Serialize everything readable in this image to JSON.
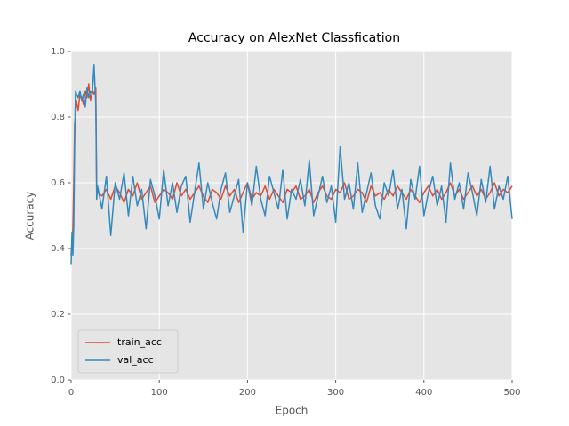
{
  "chart_data": {
    "type": "line",
    "title": "Accuracy on AlexNet Classfication",
    "xlabel": "Epoch",
    "ylabel": "Accuracy",
    "x": [
      0,
      1,
      2,
      3,
      4,
      5,
      6,
      8,
      10,
      12,
      14,
      16,
      18,
      20,
      22,
      24,
      26,
      28,
      29,
      30,
      35,
      40,
      45,
      50,
      55,
      60,
      65,
      70,
      75,
      80,
      85,
      90,
      95,
      100,
      105,
      110,
      115,
      120,
      125,
      130,
      135,
      140,
      145,
      150,
      155,
      160,
      165,
      170,
      175,
      180,
      185,
      190,
      195,
      200,
      205,
      210,
      215,
      220,
      225,
      230,
      235,
      240,
      245,
      250,
      255,
      260,
      265,
      270,
      275,
      280,
      285,
      290,
      295,
      300,
      305,
      310,
      315,
      320,
      325,
      330,
      335,
      340,
      345,
      350,
      355,
      360,
      365,
      370,
      375,
      380,
      385,
      390,
      395,
      400,
      405,
      410,
      415,
      420,
      425,
      430,
      435,
      440,
      445,
      450,
      455,
      460,
      465,
      470,
      475,
      480,
      485,
      490,
      495,
      500
    ],
    "series": [
      {
        "name": "train_acc",
        "color": "#E24A33",
        "values": [
          0.38,
          0.42,
          0.46,
          0.6,
          0.78,
          0.8,
          0.85,
          0.82,
          0.87,
          0.86,
          0.84,
          0.88,
          0.86,
          0.9,
          0.85,
          0.88,
          0.87,
          0.89,
          0.58,
          0.57,
          0.56,
          0.58,
          0.55,
          0.59,
          0.57,
          0.54,
          0.58,
          0.56,
          0.6,
          0.55,
          0.57,
          0.59,
          0.54,
          0.56,
          0.58,
          0.57,
          0.55,
          0.6,
          0.56,
          0.58,
          0.55,
          0.57,
          0.59,
          0.56,
          0.54,
          0.58,
          0.57,
          0.55,
          0.59,
          0.56,
          0.58,
          0.54,
          0.57,
          0.6,
          0.55,
          0.57,
          0.56,
          0.59,
          0.55,
          0.58,
          0.56,
          0.54,
          0.58,
          0.57,
          0.59,
          0.55,
          0.56,
          0.58,
          0.54,
          0.57,
          0.59,
          0.56,
          0.55,
          0.58,
          0.57,
          0.6,
          0.55,
          0.56,
          0.58,
          0.57,
          0.54,
          0.59,
          0.56,
          0.57,
          0.55,
          0.58,
          0.56,
          0.59,
          0.57,
          0.55,
          0.58,
          0.56,
          0.54,
          0.57,
          0.59,
          0.56,
          0.58,
          0.55,
          0.57,
          0.6,
          0.56,
          0.58,
          0.55,
          0.57,
          0.59,
          0.56,
          0.58,
          0.55,
          0.57,
          0.6,
          0.56,
          0.58,
          0.57,
          0.59
        ]
      },
      {
        "name": "val_acc",
        "color": "#348ABD",
        "values": [
          0.35,
          0.45,
          0.38,
          0.47,
          0.72,
          0.88,
          0.87,
          0.86,
          0.88,
          0.85,
          0.87,
          0.83,
          0.89,
          0.86,
          0.88,
          0.87,
          0.96,
          0.84,
          0.55,
          0.59,
          0.52,
          0.62,
          0.44,
          0.6,
          0.55,
          0.63,
          0.5,
          0.62,
          0.53,
          0.58,
          0.46,
          0.61,
          0.56,
          0.49,
          0.64,
          0.53,
          0.6,
          0.51,
          0.59,
          0.62,
          0.48,
          0.57,
          0.66,
          0.52,
          0.6,
          0.54,
          0.49,
          0.58,
          0.63,
          0.51,
          0.56,
          0.61,
          0.45,
          0.6,
          0.53,
          0.65,
          0.55,
          0.5,
          0.62,
          0.57,
          0.52,
          0.64,
          0.49,
          0.58,
          0.55,
          0.61,
          0.53,
          0.67,
          0.5,
          0.56,
          0.62,
          0.54,
          0.59,
          0.48,
          0.71,
          0.55,
          0.6,
          0.52,
          0.66,
          0.51,
          0.57,
          0.63,
          0.53,
          0.49,
          0.6,
          0.56,
          0.64,
          0.52,
          0.58,
          0.46,
          0.61,
          0.55,
          0.65,
          0.5,
          0.57,
          0.62,
          0.53,
          0.59,
          0.48,
          0.66,
          0.55,
          0.6,
          0.52,
          0.63,
          0.57,
          0.5,
          0.61,
          0.54,
          0.65,
          0.52,
          0.59,
          0.55,
          0.62,
          0.49
        ]
      }
    ],
    "xlim": [
      0,
      500
    ],
    "xticks": [
      0,
      100,
      200,
      300,
      400,
      500
    ],
    "ylim": [
      0,
      1
    ],
    "yticks": [
      {
        "value": 0,
        "label": "0.0"
      },
      {
        "value": 0.2,
        "label": "0.2"
      },
      {
        "value": 0.4,
        "label": "0.4"
      },
      {
        "value": 0.6,
        "label": "0.6"
      },
      {
        "value": 0.8,
        "label": "0.8"
      },
      {
        "value": 1,
        "label": "1.0"
      }
    ],
    "grid": true,
    "legend": "lower left"
  }
}
